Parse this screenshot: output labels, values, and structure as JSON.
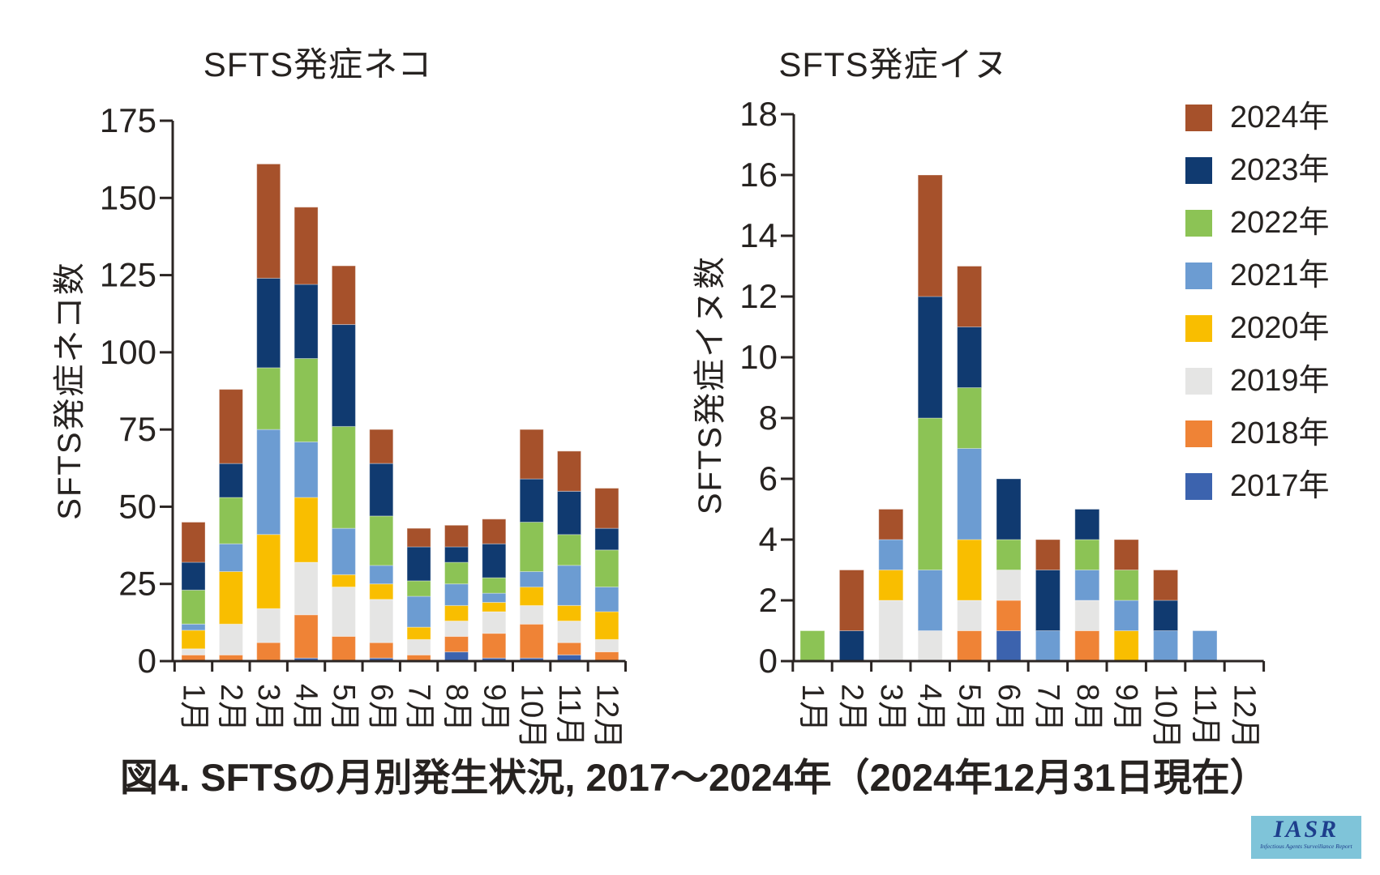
{
  "figure": {
    "caption": "図4. SFTSの月別発生状況, 2017～2024年（2024年12月31日現在）",
    "text_color": "#262220",
    "axis_color": "#2b2523"
  },
  "logo": {
    "title": "IASR",
    "subtitle": "Infectious Agents Surveillance Report",
    "bg_color": "#7FC4D9",
    "text_color": "#1E3E8C"
  },
  "years": [
    {
      "label": "2017年",
      "color": "#3C63AE"
    },
    {
      "label": "2018年",
      "color": "#EF8336"
    },
    {
      "label": "2019年",
      "color": "#E5E5E4"
    },
    {
      "label": "2020年",
      "color": "#F9BE00"
    },
    {
      "label": "2021年",
      "color": "#6C9CD2"
    },
    {
      "label": "2022年",
      "color": "#8CC355"
    },
    {
      "label": "2023年",
      "color": "#103A70"
    },
    {
      "label": "2024年",
      "color": "#A6512B"
    }
  ],
  "legend_order": [
    "2024年",
    "2023年",
    "2022年",
    "2021年",
    "2020年",
    "2019年",
    "2018年",
    "2017年"
  ],
  "chart_data": [
    {
      "type": "bar",
      "stacked": true,
      "title": "SFTS発症ネコ",
      "ylabel": "SFTS発症ネコ数",
      "ylim": [
        0,
        175
      ],
      "ytick_step": 25,
      "grid": false,
      "categories": [
        "1月",
        "2月",
        "3月",
        "4月",
        "5月",
        "6月",
        "7月",
        "8月",
        "9月",
        "10月",
        "11月",
        "12月"
      ],
      "series": [
        {
          "name": "2017年",
          "values": [
            0,
            0,
            0,
            1,
            0,
            1,
            0,
            3,
            1,
            1,
            2,
            0
          ]
        },
        {
          "name": "2018年",
          "values": [
            2,
            2,
            6,
            14,
            8,
            5,
            2,
            5,
            8,
            11,
            4,
            3
          ]
        },
        {
          "name": "2019年",
          "values": [
            2,
            10,
            11,
            17,
            16,
            14,
            5,
            5,
            7,
            6,
            7,
            4
          ]
        },
        {
          "name": "2020年",
          "values": [
            6,
            17,
            24,
            21,
            4,
            5,
            4,
            5,
            3,
            6,
            5,
            9
          ]
        },
        {
          "name": "2021年",
          "values": [
            2,
            9,
            34,
            18,
            15,
            6,
            10,
            7,
            3,
            5,
            13,
            8
          ]
        },
        {
          "name": "2022年",
          "values": [
            11,
            15,
            20,
            27,
            33,
            16,
            5,
            7,
            5,
            16,
            10,
            12
          ]
        },
        {
          "name": "2023年",
          "values": [
            9,
            11,
            29,
            24,
            33,
            17,
            11,
            5,
            11,
            14,
            14,
            7
          ]
        },
        {
          "name": "2024年",
          "values": [
            13,
            24,
            37,
            25,
            19,
            11,
            6,
            7,
            8,
            16,
            13,
            13
          ]
        }
      ],
      "totals": [
        45,
        88,
        161,
        147,
        128,
        75,
        43,
        44,
        46,
        75,
        68,
        56
      ]
    },
    {
      "type": "bar",
      "stacked": true,
      "title": "SFTS発症イヌ",
      "ylabel": "SFTS発症イヌ数",
      "ylim": [
        0,
        18
      ],
      "ytick_step": 2,
      "grid": false,
      "categories": [
        "1月",
        "2月",
        "3月",
        "4月",
        "5月",
        "6月",
        "7月",
        "8月",
        "9月",
        "10月",
        "11月",
        "12月"
      ],
      "series": [
        {
          "name": "2017年",
          "values": [
            0,
            0,
            0,
            0,
            0,
            1,
            0,
            0,
            0,
            0,
            0,
            0
          ]
        },
        {
          "name": "2018年",
          "values": [
            0,
            0,
            0,
            0,
            1,
            1,
            0,
            1,
            0,
            0,
            0,
            0
          ]
        },
        {
          "name": "2019年",
          "values": [
            0,
            0,
            2,
            1,
            1,
            1,
            0,
            1,
            0,
            0,
            0,
            0
          ]
        },
        {
          "name": "2020年",
          "values": [
            0,
            0,
            1,
            0,
            2,
            0,
            0,
            0,
            1,
            0,
            0,
            0
          ]
        },
        {
          "name": "2021年",
          "values": [
            0,
            0,
            1,
            2,
            3,
            0,
            1,
            1,
            1,
            1,
            1,
            0
          ]
        },
        {
          "name": "2022年",
          "values": [
            1,
            0,
            0,
            5,
            2,
            1,
            0,
            1,
            1,
            0,
            0,
            0
          ]
        },
        {
          "name": "2023年",
          "values": [
            0,
            1,
            0,
            4,
            2,
            2,
            2,
            1,
            0,
            1,
            0,
            0
          ]
        },
        {
          "name": "2024年",
          "values": [
            0,
            2,
            1,
            4,
            2,
            0,
            1,
            0,
            1,
            1,
            0,
            0
          ]
        }
      ],
      "totals": [
        1,
        3,
        5,
        16,
        13,
        6,
        4,
        5,
        4,
        3,
        1,
        0
      ]
    }
  ]
}
